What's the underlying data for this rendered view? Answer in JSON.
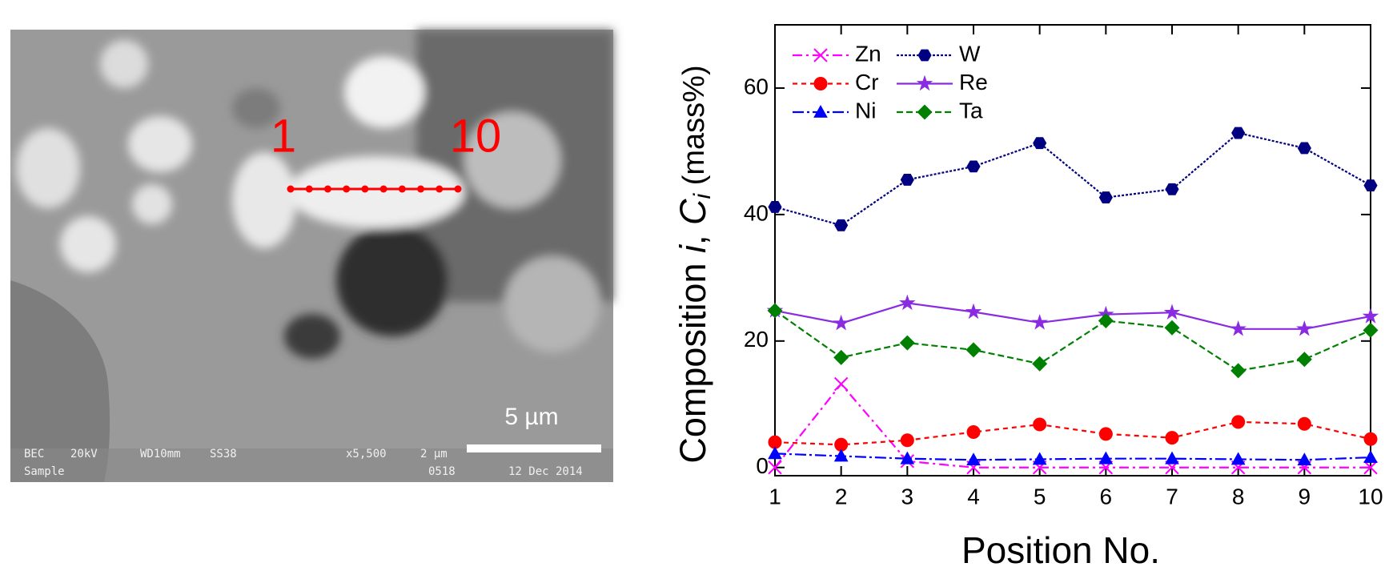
{
  "micrograph": {
    "start_label": "1",
    "end_label": "10",
    "scale_bar": "5 µm",
    "info": [
      "BEC",
      "20kV",
      "WD10mm",
      "SS38",
      "x5,500",
      "2 µm",
      "Sample",
      "0518",
      "12 Dec 2014"
    ]
  },
  "chart_data": {
    "type": "line",
    "ylabel": [
      "Composition ",
      "i",
      ", ",
      "C",
      "i",
      " (mass%)"
    ],
    "xlabel": "Position No.",
    "x": [
      1,
      2,
      3,
      4,
      5,
      6,
      7,
      8,
      9,
      10
    ],
    "xlim": [
      1,
      10
    ],
    "xticks": [
      1,
      2,
      3,
      4,
      5,
      6,
      7,
      8,
      9,
      10
    ],
    "ylim": [
      -1.3,
      70
    ],
    "yticks": [
      0,
      20,
      40,
      60
    ],
    "series": [
      {
        "name": "Zn",
        "color": "#ff00ff",
        "marker": "x",
        "dash": "12 5 3 5",
        "values": [
          0,
          13.2,
          1.0,
          0,
          0,
          0,
          0,
          0,
          0,
          0
        ]
      },
      {
        "name": "Cr",
        "color": "#ff0000",
        "marker": "circle",
        "dash": "6 5",
        "values": [
          4.0,
          3.6,
          4.3,
          5.6,
          6.8,
          5.3,
          4.7,
          7.2,
          6.9,
          4.5
        ]
      },
      {
        "name": "Ni",
        "color": "#0000ff",
        "marker": "triangle",
        "dash": "14 4 3 4",
        "values": [
          2.2,
          1.8,
          1.4,
          1.2,
          1.3,
          1.4,
          1.4,
          1.3,
          1.2,
          1.6
        ]
      },
      {
        "name": "W",
        "color": "#000080",
        "marker": "hexagon",
        "dash": "3 2",
        "values": [
          41.2,
          38.3,
          45.5,
          47.6,
          51.3,
          42.7,
          44.0,
          52.9,
          50.5,
          44.6
        ]
      },
      {
        "name": "Re",
        "color": "#8a2be2",
        "marker": "star",
        "dash": "none",
        "values": [
          24.8,
          22.8,
          26.0,
          24.6,
          22.9,
          24.2,
          24.5,
          21.9,
          21.9,
          23.9
        ]
      },
      {
        "name": "Ta",
        "color": "#008000",
        "marker": "diamond",
        "dash": "8 4",
        "values": [
          24.8,
          17.4,
          19.7,
          18.6,
          16.4,
          23.2,
          22.1,
          15.3,
          17.1,
          21.7
        ]
      }
    ]
  }
}
